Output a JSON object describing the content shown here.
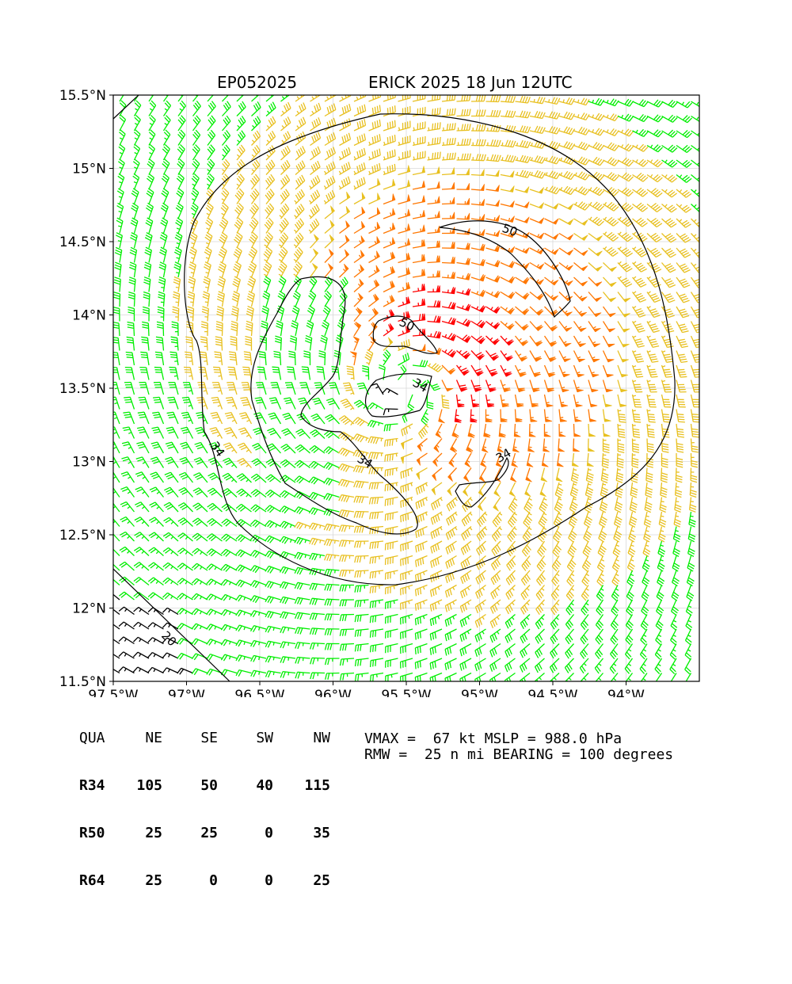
{
  "title": {
    "storm_id": "EP052025",
    "storm_desc": "ERICK 2025 18 Jun 12UTC"
  },
  "map": {
    "lon_range": [
      -97.5,
      -93.5
    ],
    "lat_range": [
      11.5,
      15.5
    ],
    "lon_ticks": [
      "97.5°W",
      "97°W",
      "96.5°W",
      "96°W",
      "95.5°W",
      "95°W",
      "94.5°W",
      "94°W"
    ],
    "lat_ticks": [
      "15.5°N",
      "15°N",
      "14.5°N",
      "14°N",
      "13.5°N",
      "13°N",
      "12.5°N",
      "12°N",
      "11.5°N"
    ],
    "contour_labels": [
      "50",
      "50",
      "34",
      "34",
      "34",
      "34",
      "20"
    ],
    "wind_colors": {
      "below_20": "#000000",
      "20_34": "#00ee00",
      "34_50": "#e8c020",
      "50_64": "#ff7700",
      "64_plus": "#ff0000"
    },
    "contour_color": "#000000",
    "grid": true
  },
  "quadrant_table": {
    "header": [
      "QUA",
      "NE",
      "SE",
      "SW",
      "NW"
    ],
    "rows": [
      {
        "label": "R34",
        "values": [
          "105",
          "50",
          "40",
          "115"
        ]
      },
      {
        "label": "R50",
        "values": [
          "25",
          "25",
          "0",
          "35"
        ]
      },
      {
        "label": "R64",
        "values": [
          "25",
          "0",
          "0",
          "25"
        ]
      }
    ]
  },
  "stats": {
    "line1": "VMAX =  67 kt MSLP = 988.0 hPa",
    "line2": "RMW =  25 n mi BEARING = 100 degrees"
  }
}
